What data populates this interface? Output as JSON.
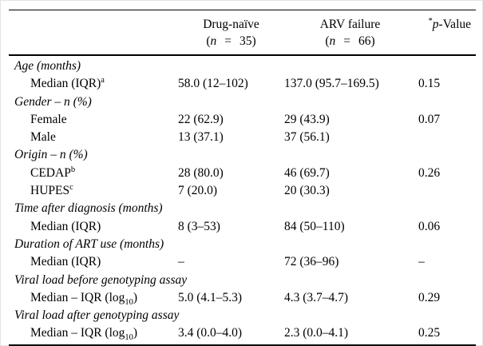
{
  "table": {
    "header": {
      "col2": {
        "title": "Drug-naïve",
        "paren": "(",
        "n": "n",
        "eq": "=",
        "val": "35)"
      },
      "col3": {
        "title": "ARV failure",
        "paren": "(",
        "n": "n",
        "eq": "=",
        "val": "66)"
      },
      "col4": {
        "sup": "*",
        "p": "p",
        "rest": "-Value"
      }
    },
    "rows": [
      {
        "type": "section",
        "label": "Age (months)"
      },
      {
        "type": "item",
        "label": "Median (IQR)",
        "sup": "a",
        "c2": "58.0 (12–102)",
        "c3": "137.0 (95.7–169.5)",
        "c4": "0.15"
      },
      {
        "type": "section",
        "label": "Gender – n (%)"
      },
      {
        "type": "item",
        "label": "Female",
        "c2": "22 (62.9)",
        "c3": "29 (43.9)",
        "c4": "0.07"
      },
      {
        "type": "item",
        "label": "Male",
        "c2": "13 (37.1)",
        "c3": "37 (56.1)",
        "c4": ""
      },
      {
        "type": "section",
        "label": "Origin – n (%)"
      },
      {
        "type": "item",
        "label": "CEDAP",
        "sup": "b",
        "c2": "28 (80.0)",
        "c3": "46 (69.7)",
        "c4": "0.26"
      },
      {
        "type": "item",
        "label": "HUPES",
        "sup": "c",
        "c2": "7 (20.0)",
        "c3": "20 (30.3)",
        "c4": ""
      },
      {
        "type": "section",
        "label": "Time after diagnosis (months)"
      },
      {
        "type": "item",
        "label": "Median (IQR)",
        "c2": "8 (3–53)",
        "c3": "84 (50–110)",
        "c4": "0.06"
      },
      {
        "type": "section",
        "label": "Duration of ART use (months)"
      },
      {
        "type": "item",
        "label": "Median (IQR)",
        "c2": "–",
        "c3": "72 (36–96)",
        "c4": "–"
      },
      {
        "type": "section",
        "label": "Viral load before genotyping assay"
      },
      {
        "type": "item",
        "label": "Median – IQR (log",
        "sub": "10",
        "label_end": ")",
        "c2": "5.0 (4.1–5.3)",
        "c3": "4.3 (3.7–4.7)",
        "c4": "0.29"
      },
      {
        "type": "section",
        "label": "Viral load after genotyping assay"
      },
      {
        "type": "item",
        "label": "Median – IQR (log",
        "sub": "10",
        "label_end": ")",
        "c2": "3.4 (0.0–4.0)",
        "c3": "2.3 (0.0–4.1)",
        "c4": "0.25"
      }
    ]
  }
}
